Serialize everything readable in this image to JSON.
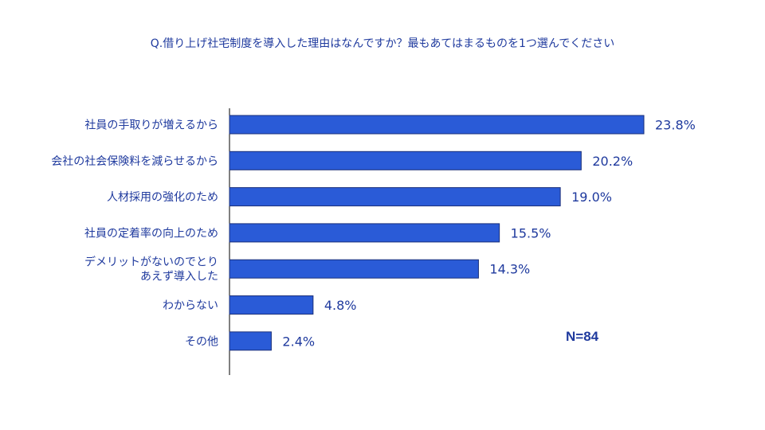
{
  "chart_data": {
    "type": "bar",
    "orientation": "horizontal",
    "title": "Q.借り上げ社宅制度を導入した理由はなんですか？最もあてはまるものを1つ選んでください",
    "categories": [
      [
        "社員の手取りが増えるから"
      ],
      [
        "会社の社会保険料を減らせるから"
      ],
      [
        "人材採用の強化のため"
      ],
      [
        "社員の定着率の向上のため"
      ],
      [
        "デメリットがないのでとり",
        "あえず導入した"
      ],
      [
        "わからない"
      ],
      [
        "その他"
      ]
    ],
    "values": [
      23.8,
      20.2,
      19.0,
      15.5,
      14.3,
      4.8,
      2.4
    ],
    "value_labels": [
      "23.8%",
      "20.2%",
      "19.0%",
      "15.5%",
      "14.3%",
      "4.8%",
      "2.4%"
    ],
    "bar_color": "#2a5bd7",
    "text_color": "#1f3a9e",
    "xlabel": "",
    "ylabel": "",
    "xlim": [
      0,
      23.8
    ],
    "grid": false,
    "annotation": "N=84"
  }
}
